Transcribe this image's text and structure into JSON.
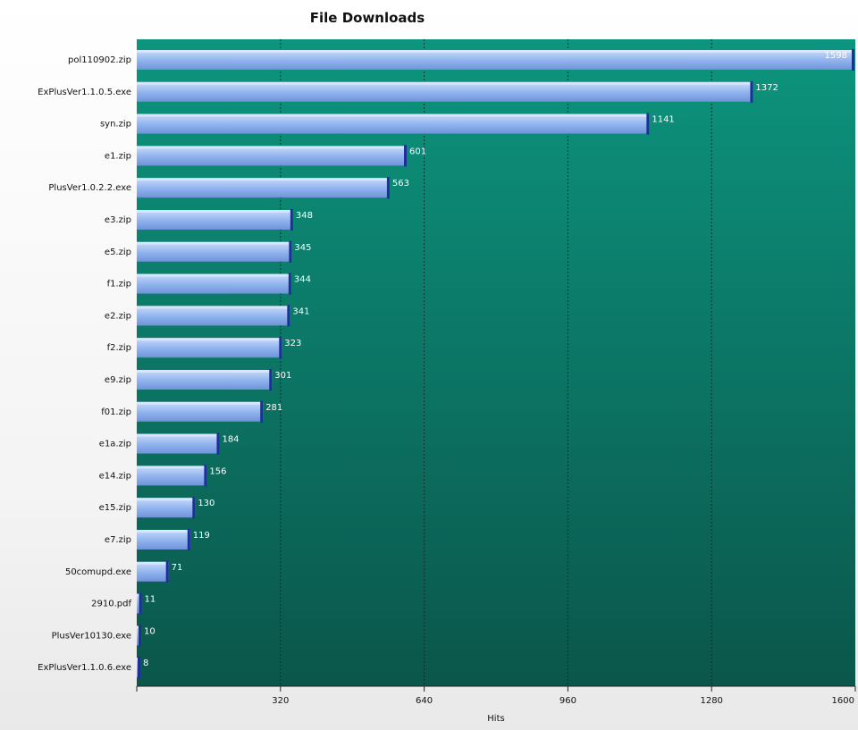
{
  "chart_data": {
    "type": "bar",
    "orientation": "horizontal",
    "title": "File Downloads",
    "xlabel": "Hits",
    "ylabel": "",
    "xlim": [
      0,
      1600
    ],
    "xticks": [
      320,
      640,
      960,
      1280,
      1600
    ],
    "grid": true,
    "categories": [
      "pol110902.zip",
      "ExPlusVer1.1.0.5.exe",
      "syn.zip",
      "e1.zip",
      "PlusVer1.0.2.2.exe",
      "e3.zip",
      "e5.zip",
      "f1.zip",
      "e2.zip",
      "f2.zip",
      "e9.zip",
      "f01.zip",
      "e1a.zip",
      "e14.zip",
      "e15.zip",
      "e7.zip",
      "50comupd.exe",
      "2910.pdf",
      "PlusVer10130.exe",
      "ExPlusVer1.1.0.6.exe"
    ],
    "values": [
      1598,
      1372,
      1141,
      601,
      563,
      348,
      345,
      344,
      341,
      323,
      301,
      281,
      184,
      156,
      130,
      119,
      71,
      11,
      10,
      8
    ],
    "colors": {
      "bar_light": "#c9dcfa",
      "bar_mid": "#8fb2ee",
      "bar_dark": "#6f93d8",
      "bar_cap": "#1c2f9a",
      "plot_top": "#0c957e",
      "plot_bottom": "#0b564b",
      "grid": "#0a2f28"
    }
  }
}
